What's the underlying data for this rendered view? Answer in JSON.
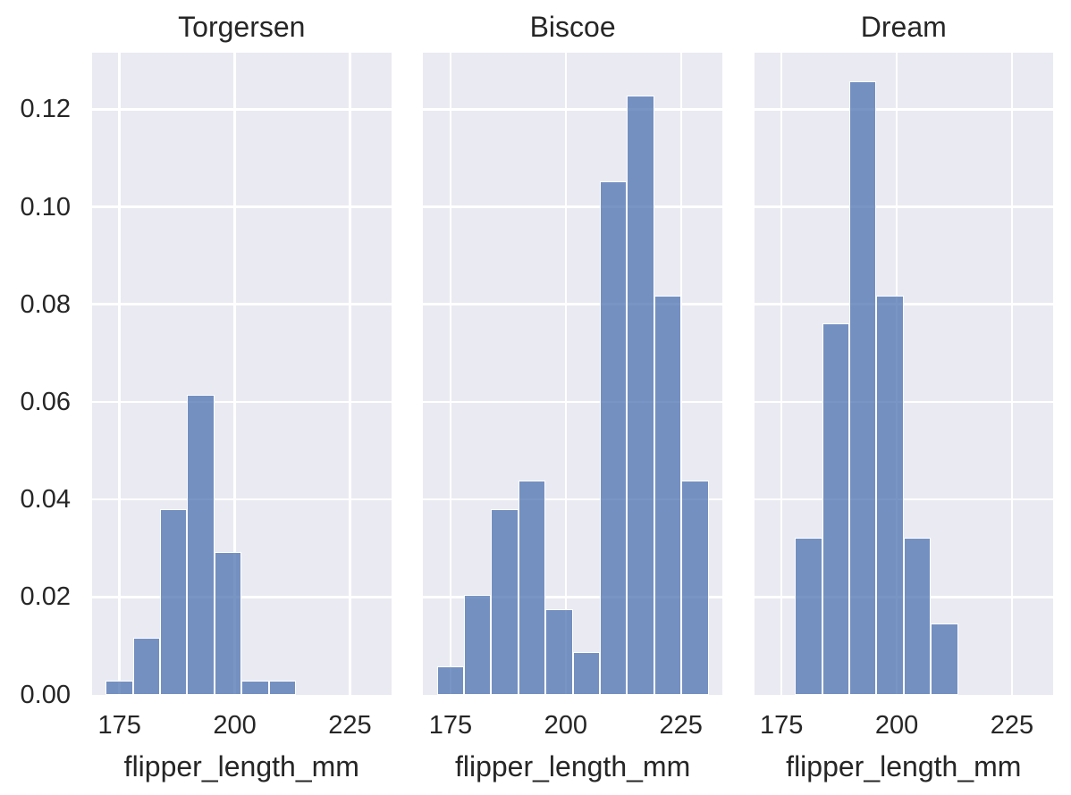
{
  "chart_data": {
    "type": "bar",
    "chart_kind": "faceted-histogram",
    "stat": "probability",
    "xlabel": "flipper_length_mm",
    "x_ticks": [
      175,
      200,
      225
    ],
    "y_ticks": [
      0.0,
      0.02,
      0.04,
      0.06,
      0.08,
      0.1,
      0.12
    ],
    "y_tick_labels": [
      "0.00",
      "0.02",
      "0.04",
      "0.06",
      "0.08",
      "0.10",
      "0.12"
    ],
    "xlim": [
      169.05,
      233.95
    ],
    "ylim": [
      0,
      0.1317
    ],
    "grid": true,
    "legend": false,
    "bin_edges": [
      172.0,
      177.9,
      183.8,
      189.7,
      195.6,
      201.5,
      207.4,
      213.3,
      219.2,
      225.1,
      231.0
    ],
    "facets": [
      {
        "title": "Torgersen",
        "start_bin": 0,
        "counts": [
          1,
          4,
          13,
          21,
          10,
          1,
          1
        ],
        "values": [
          0.00292,
          0.0117,
          0.03801,
          0.0614,
          0.02924,
          0.00292,
          0.00292
        ]
      },
      {
        "title": "Biscoe",
        "start_bin": 0,
        "counts": [
          2,
          7,
          13,
          15,
          6,
          3,
          36,
          42,
          28,
          15
        ],
        "values": [
          0.00585,
          0.02047,
          0.03801,
          0.04386,
          0.01754,
          0.00877,
          0.10526,
          0.12281,
          0.08187,
          0.04386
        ]
      },
      {
        "title": "Dream",
        "start_bin": 1,
        "counts": [
          11,
          26,
          43,
          28,
          11,
          5
        ],
        "values": [
          0.03216,
          0.07602,
          0.12573,
          0.08187,
          0.03216,
          0.01462
        ]
      }
    ],
    "colors": {
      "bar_fill": "#4c72b0",
      "bar_fill_alpha": 0.75,
      "bar_edge": "#ffffff",
      "panel_bg": "#eaeaf2",
      "grid": "#ffffff",
      "text": "#262626",
      "figure_bg": "#ffffff"
    }
  }
}
